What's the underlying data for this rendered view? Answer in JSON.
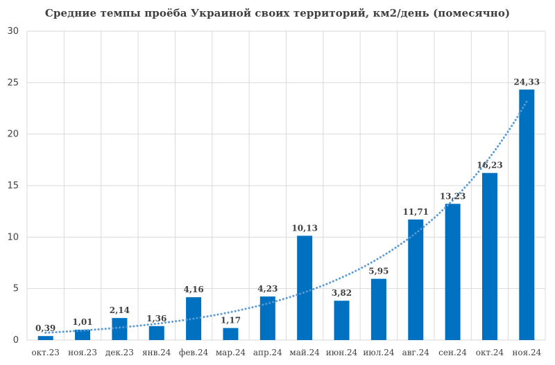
{
  "chart_data": {
    "type": "bar",
    "title": "Средние темпы проёба Украиной своих территорий, км2/день (помесячно)",
    "xlabel": "",
    "ylabel": "",
    "ylim": [
      0,
      30
    ],
    "yticks": [
      0,
      5,
      10,
      15,
      20,
      25,
      30
    ],
    "grid": true,
    "trendline": "exponential, dotted",
    "categories": [
      "окт.23",
      "ноя.23",
      "дек.23",
      "янв.24",
      "фев.24",
      "мар.24",
      "апр.24",
      "май.24",
      "июн.24",
      "июл.24",
      "авг.24",
      "сен.24",
      "окт.24",
      "ноя.24"
    ],
    "values": [
      0.39,
      1.01,
      2.14,
      1.36,
      4.16,
      1.17,
      4.23,
      10.13,
      3.82,
      5.95,
      11.71,
      13.23,
      16.23,
      24.33
    ],
    "value_labels": [
      "0,39",
      "1,01",
      "2,14",
      "1,36",
      "4,16",
      "1,17",
      "4,23",
      "10,13",
      "3,82",
      "5,95",
      "11,71",
      "13,23",
      "16,23",
      "24,33"
    ],
    "colors": {
      "bar": "#0070c0",
      "trend": "#5b9bd5",
      "grid": "#d9d9d9",
      "text": "#404040"
    }
  }
}
